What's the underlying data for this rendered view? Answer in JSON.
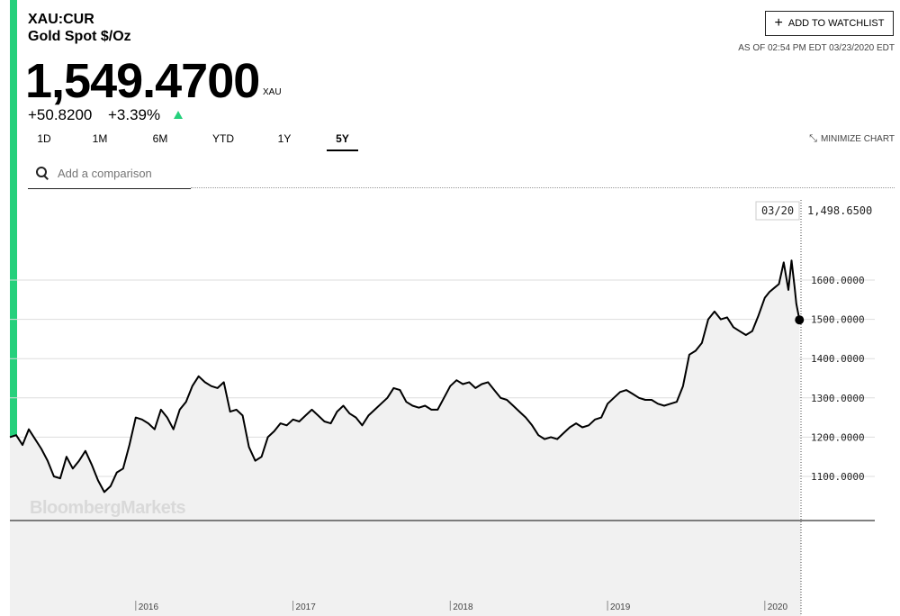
{
  "colors": {
    "accent": "#26d07c",
    "line": "#000000",
    "fill": "#f1f1f1",
    "grid": "#dddddd"
  },
  "quote": {
    "ticker": "XAU:CUR",
    "name": "Gold Spot $/Oz",
    "price": "1,549.4700",
    "currency": "XAU",
    "change": "+50.8200",
    "change_pct": "+3.39%",
    "direction_icon": "up-triangle-icon"
  },
  "header": {
    "watchlist_label": "ADD TO WATCHLIST",
    "as_of": "AS OF 02:54 PM EDT 03/23/2020 EDT"
  },
  "tabs": [
    {
      "label": "1D",
      "active": false
    },
    {
      "label": "1M",
      "active": false
    },
    {
      "label": "6M",
      "active": false
    },
    {
      "label": "YTD",
      "active": false
    },
    {
      "label": "1Y",
      "active": false
    },
    {
      "label": "5Y",
      "active": true
    }
  ],
  "minimize_label": "MINIMIZE CHART",
  "search": {
    "placeholder": "Add a comparison"
  },
  "watermark": "BloombergMarkets",
  "tooltip": {
    "date": "03/20",
    "value": "1,498.6500"
  },
  "chart_data": {
    "type": "line",
    "title": "",
    "xlabel": "",
    "ylabel": "",
    "x_tick_labels": [
      "2016",
      "2017",
      "2018",
      "2019",
      "2020"
    ],
    "x_ticks": [
      2016.0,
      2017.0,
      2018.0,
      2019.0,
      2020.0
    ],
    "y_tick_labels": [
      "1600.0000",
      "1500.0000",
      "1400.0000",
      "1300.0000",
      "1200.0000",
      "1100.0000"
    ],
    "y_ticks": [
      1600,
      1500,
      1400,
      1300,
      1200,
      1100
    ],
    "xlim": [
      2015.2,
      2020.23
    ],
    "ylim": [
      1000,
      1650
    ],
    "grid": true,
    "legend": "none",
    "series": [
      {
        "x": [
          2015.2,
          2015.24,
          2015.28,
          2015.32,
          2015.36,
          2015.4,
          2015.44,
          2015.48,
          2015.52,
          2015.56,
          2015.6,
          2015.64,
          2015.68,
          2015.72,
          2015.76,
          2015.8,
          2015.84,
          2015.88,
          2015.92,
          2015.96,
          2016.0,
          2016.04,
          2016.08,
          2016.12,
          2016.16,
          2016.2,
          2016.24,
          2016.28,
          2016.32,
          2016.36,
          2016.4,
          2016.44,
          2016.48,
          2016.52,
          2016.56,
          2016.6,
          2016.64,
          2016.68,
          2016.72,
          2016.76,
          2016.8,
          2016.84,
          2016.88,
          2016.92,
          2016.96,
          2017.0,
          2017.04,
          2017.08,
          2017.12,
          2017.16,
          2017.2,
          2017.24,
          2017.28,
          2017.32,
          2017.36,
          2017.4,
          2017.44,
          2017.48,
          2017.52,
          2017.56,
          2017.6,
          2017.64,
          2017.68,
          2017.72,
          2017.76,
          2017.8,
          2017.84,
          2017.88,
          2017.92,
          2017.96,
          2018.0,
          2018.04,
          2018.08,
          2018.12,
          2018.16,
          2018.2,
          2018.24,
          2018.28,
          2018.32,
          2018.36,
          2018.4,
          2018.44,
          2018.48,
          2018.52,
          2018.56,
          2018.6,
          2018.64,
          2018.68,
          2018.72,
          2018.76,
          2018.8,
          2018.84,
          2018.88,
          2018.92,
          2018.96,
          2019.0,
          2019.04,
          2019.08,
          2019.12,
          2019.16,
          2019.2,
          2019.24,
          2019.28,
          2019.32,
          2019.36,
          2019.4,
          2019.44,
          2019.48,
          2019.52,
          2019.56,
          2019.6,
          2019.64,
          2019.68,
          2019.72,
          2019.76,
          2019.8,
          2019.84,
          2019.88,
          2019.92,
          2019.96,
          2020.0,
          2020.03,
          2020.06,
          2020.09,
          2020.12,
          2020.15,
          2020.17,
          2020.19,
          2020.2,
          2020.22
        ],
        "y": [
          1200,
          1205,
          1180,
          1220,
          1195,
          1170,
          1140,
          1100,
          1095,
          1150,
          1120,
          1140,
          1165,
          1130,
          1090,
          1060,
          1075,
          1110,
          1120,
          1180,
          1250,
          1245,
          1235,
          1220,
          1270,
          1250,
          1220,
          1270,
          1290,
          1330,
          1355,
          1340,
          1330,
          1325,
          1340,
          1265,
          1270,
          1255,
          1175,
          1140,
          1150,
          1200,
          1215,
          1235,
          1230,
          1245,
          1240,
          1255,
          1270,
          1255,
          1240,
          1235,
          1265,
          1280,
          1260,
          1250,
          1230,
          1255,
          1270,
          1285,
          1300,
          1325,
          1320,
          1290,
          1280,
          1275,
          1280,
          1270,
          1270,
          1300,
          1330,
          1345,
          1335,
          1340,
          1325,
          1335,
          1340,
          1320,
          1300,
          1295,
          1280,
          1265,
          1250,
          1230,
          1205,
          1195,
          1200,
          1195,
          1210,
          1225,
          1235,
          1225,
          1230,
          1245,
          1250,
          1285,
          1300,
          1315,
          1320,
          1310,
          1300,
          1295,
          1295,
          1285,
          1280,
          1285,
          1290,
          1330,
          1410,
          1420,
          1440,
          1500,
          1520,
          1500,
          1505,
          1480,
          1470,
          1460,
          1470,
          1510,
          1555,
          1570,
          1580,
          1590,
          1645,
          1575,
          1650,
          1580,
          1540,
          1498.65
        ]
      }
    ]
  }
}
